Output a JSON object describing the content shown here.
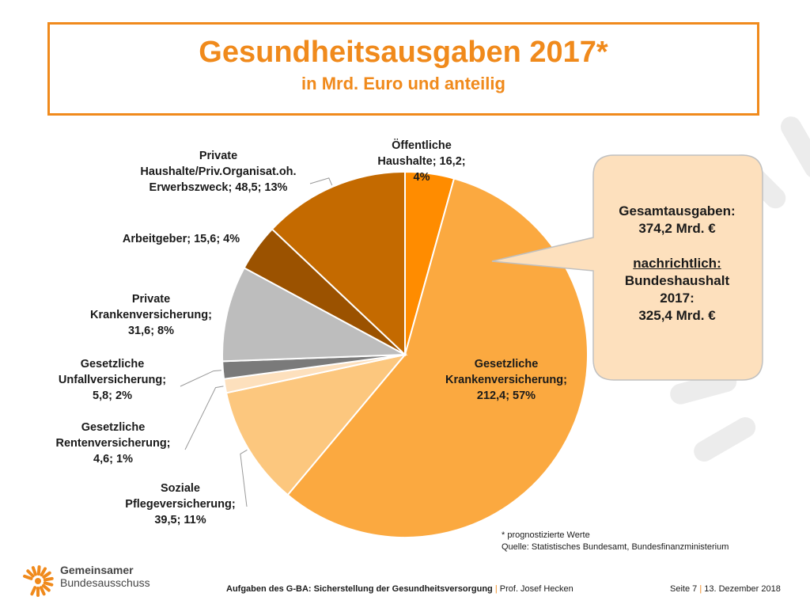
{
  "header": {
    "title": "Gesundheitsausgaben 2017*",
    "subtitle": "in Mrd. Euro und anteilig"
  },
  "chart_data": {
    "type": "pie",
    "start_angle": "12 o'clock, clockwise",
    "slices": [
      {
        "lines": [
          "Öffentliche",
          "Haushalte; 16,2;",
          "4%"
        ],
        "value": 16.2,
        "percent": 4,
        "color": "#ff8c00"
      },
      {
        "lines": [
          "Gesetzliche",
          "Krankenversicherung;",
          "212,4; 57%"
        ],
        "value": 212.4,
        "percent": 57,
        "color": "#fba940"
      },
      {
        "lines": [
          "Soziale",
          "Pflegeversicherung;",
          "39,5; 11%"
        ],
        "value": 39.5,
        "percent": 11,
        "color": "#fcc77e"
      },
      {
        "lines": [
          "Gesetzliche",
          "Rentenversicherung;",
          "4,6; 1%"
        ],
        "value": 4.6,
        "percent": 1,
        "color": "#fde0bd"
      },
      {
        "lines": [
          "Gesetzliche",
          "Unfallversicherung;",
          "5,8; 2%"
        ],
        "value": 5.8,
        "percent": 2,
        "color": "#7a7a7a"
      },
      {
        "lines": [
          "Private",
          "Krankenversicherung;",
          "31,6; 8%"
        ],
        "value": 31.6,
        "percent": 8,
        "color": "#bdbdbd"
      },
      {
        "lines": [
          "Arbeitgeber; 15,6; 4%"
        ],
        "value": 15.6,
        "percent": 4,
        "color": "#9b5200"
      },
      {
        "lines": [
          "Private",
          "Haushalte/Priv.Organisat.oh.",
          "Erwerbszweck; 48,5; 13%"
        ],
        "value": 48.5,
        "percent": 13,
        "color": "#c46a00"
      }
    ],
    "total": 374.2
  },
  "callout": {
    "line1": "Gesamtausgaben:",
    "line2": "374,2 Mrd. €",
    "line3": "nachrichtlich:",
    "line4": "Bundeshaushalt",
    "line5": "2017:",
    "line6": "325,4 Mrd. €",
    "fill": "#fde0bd",
    "border": "#c0c0c0"
  },
  "notes": {
    "footnote": "* prognostizierte Werte",
    "source": "Quelle: Statistisches Bundesamt, Bundesfinanzministerium"
  },
  "logo": {
    "line1": "Gemeinsamer",
    "line2": "Bundesausschuss"
  },
  "footer": {
    "topic": "Aufgaben des G-BA: Sicherstellung der Gesundheitsversorgung",
    "sep1": "|",
    "author": "Prof. Josef Hecken",
    "page": "Seite 7",
    "sep2": "|",
    "date": "13. Dezember 2018"
  },
  "colors": {
    "accent": "#f08a1c",
    "deco_stripes": "#ececec"
  }
}
